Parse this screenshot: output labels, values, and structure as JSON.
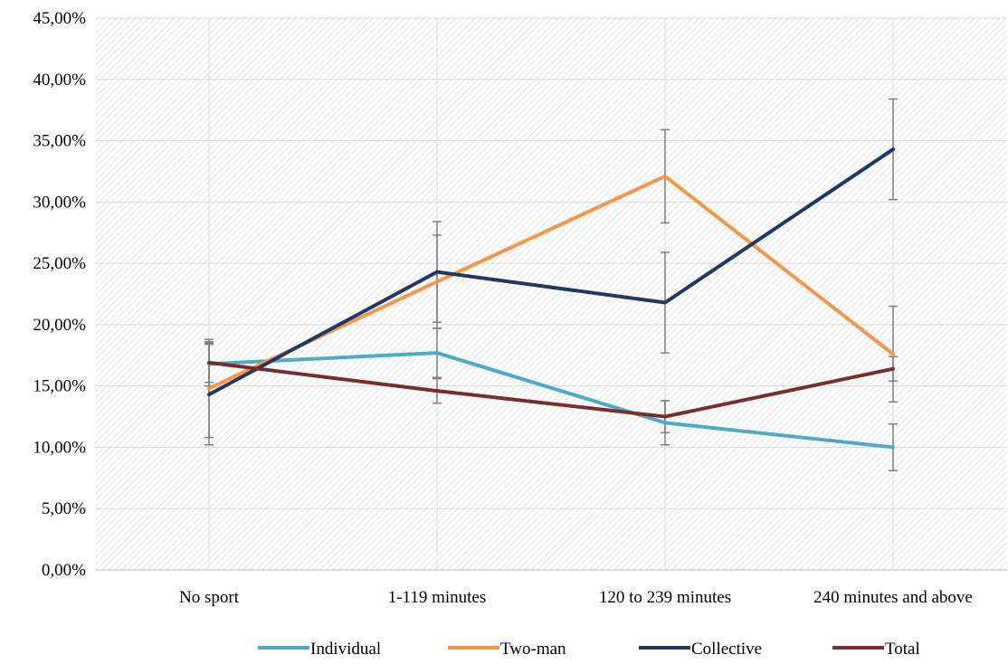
{
  "chart_data": {
    "type": "line",
    "title": "",
    "xlabel": "",
    "ylabel": "",
    "categories": [
      "No sport",
      "1-119 minutes",
      "120 to 239 minutes",
      "240 minutes and above"
    ],
    "ylim": [
      0,
      45
    ],
    "y_ticks": [
      0,
      5,
      10,
      15,
      20,
      25,
      30,
      35,
      40,
      45
    ],
    "y_tick_labels": [
      "0,00%",
      "5,00%",
      "10,00%",
      "15,00%",
      "20,00%",
      "25,00%",
      "30,00%",
      "35,00%",
      "40,00%",
      "45,00%"
    ],
    "grid": "horizontal and vertical",
    "plot_background": "diagonal hatch",
    "legend_position": "bottom",
    "series": [
      {
        "name": "Individual",
        "color": "#4bacc6",
        "values": [
          16.8,
          17.7,
          12.0,
          10.0
        ],
        "error": [
          1.8,
          2.0,
          1.8,
          1.9
        ]
      },
      {
        "name": "Two-man",
        "color": "#f79646",
        "values": [
          14.8,
          23.5,
          32.1,
          17.6
        ],
        "error": [
          4.0,
          3.8,
          3.8,
          3.9
        ]
      },
      {
        "name": "Collective",
        "color": "#1f3864",
        "values": [
          14.3,
          24.3,
          21.8,
          34.3
        ],
        "error": [
          4.1,
          4.1,
          4.1,
          4.1
        ]
      },
      {
        "name": "Total",
        "color": "#7b2c2c",
        "values": [
          16.9,
          14.6,
          12.5,
          16.4
        ],
        "error": [
          1.6,
          1.0,
          1.3,
          1.0
        ]
      }
    ]
  }
}
